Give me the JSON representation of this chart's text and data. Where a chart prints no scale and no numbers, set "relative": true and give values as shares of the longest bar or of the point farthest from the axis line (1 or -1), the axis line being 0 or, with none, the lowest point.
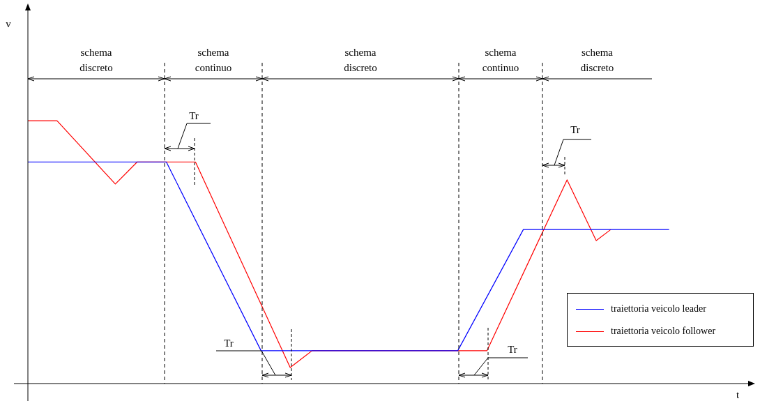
{
  "chart_data": {
    "type": "line",
    "relative": true,
    "xlabel": "t",
    "grid": false,
    "marker": "none",
    "line_style": "solid",
    "legend": "bottom right",
    "tick_labels": false,
    "categories": [
      null,
      null,
      null,
      null,
      null,
      null,
      null,
      null,
      null,
      null,
      null,
      null,
      null,
      null,
      null,
      null,
      null,
      null,
      null,
      null,
      null,
      null,
      null,
      null,
      null,
      null,
      null,
      null,
      null,
      null,
      null,
      null,
      null,
      null,
      null,
      null,
      null,
      null,
      null,
      null,
      null,
      null,
      null,
      null,
      null,
      null,
      null,
      null,
      null,
      null,
      null,
      null,
      null,
      null,
      null,
      null,
      null,
      null,
      null,
      null,
      null,
      null,
      null,
      null,
      null,
      null,
      null,
      null,
      null,
      null,
      null,
      null,
      null,
      null,
      null,
      null,
      null,
      null,
      null,
      null,
      null,
      null,
      null,
      null,
      null,
      null,
      null,
      null,
      null,
      null,
      null,
      null,
      null,
      null,
      null,
      null,
      null,
      null,
      null,
      null,
      null
    ],
    "series": [
      {
        "name": "traiettoria veicolo leader",
        "color": "#0000ff",
        "values": [
          0.843,
          null,
          null,
          null,
          null,
          null,
          null,
          null,
          null,
          null,
          null,
          null,
          null,
          null,
          null,
          null,
          null,
          null,
          null,
          0.843,
          null,
          null,
          null,
          null,
          null,
          null,
          null,
          null,
          null,
          null,
          null,
          null,
          0.125,
          null,
          null,
          null,
          null,
          null,
          null,
          null,
          null,
          null,
          null,
          null,
          null,
          null,
          null,
          null,
          null,
          null,
          null,
          null,
          null,
          null,
          null,
          null,
          null,
          null,
          null,
          0.125,
          null,
          null,
          null,
          null,
          null,
          null,
          null,
          null,
          0.586,
          null,
          null,
          null,
          null,
          null,
          null,
          null,
          null,
          null,
          null,
          null,
          null,
          null,
          null,
          null,
          null,
          null,
          null,
          null,
          0.586,
          null,
          null,
          null,
          null,
          null,
          null,
          null,
          null,
          null,
          null,
          null,
          null
        ]
      },
      {
        "name": "traiettoria veicolo follower",
        "color": "#ff0000",
        "values": [
          1,
          null,
          null,
          null,
          1,
          null,
          null,
          null,
          null,
          null,
          null,
          null,
          0.759,
          null,
          null,
          0.843,
          null,
          null,
          null,
          null,
          null,
          null,
          null,
          0.843,
          null,
          null,
          null,
          null,
          null,
          null,
          null,
          null,
          null,
          null,
          null,
          null,
          0.061,
          null,
          null,
          0.125,
          null,
          null,
          null,
          null,
          null,
          null,
          null,
          null,
          null,
          null,
          null,
          null,
          null,
          null,
          null,
          null,
          null,
          null,
          null,
          null,
          null,
          null,
          null,
          0.125,
          null,
          null,
          null,
          null,
          null,
          null,
          null,
          null,
          null,
          null,
          0.775,
          null,
          null,
          null,
          0.544,
          null,
          0.586,
          null,
          null,
          null,
          null,
          null,
          null,
          null,
          null,
          null,
          null,
          null,
          null,
          null,
          null,
          null,
          null,
          null,
          null,
          null,
          null
        ]
      }
    ],
    "annotations": [
      "schema discreto",
      "schema continuo",
      "schema discreto",
      "schema continuo",
      "schema discreto",
      "Tr",
      "Tr",
      "Tr",
      "Tr",
      "v"
    ]
  }
}
